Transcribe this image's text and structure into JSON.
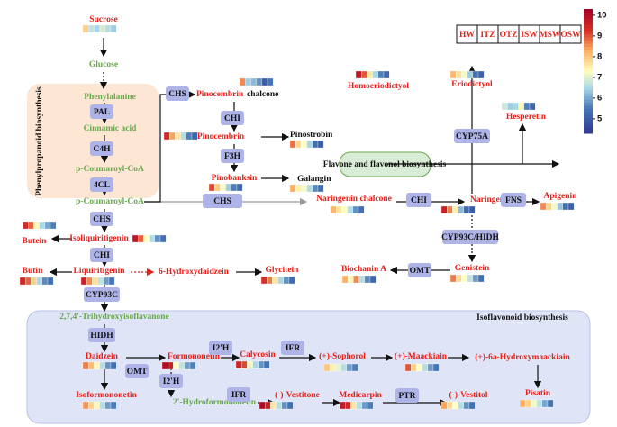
{
  "legend": {
    "samples": [
      "HW",
      "ITZ",
      "OTZ",
      "ISW",
      "MSW",
      "OSW"
    ]
  },
  "colorbar": {
    "lim": [
      4.3,
      10.3
    ],
    "ticks": [
      5,
      6,
      7,
      8,
      9,
      10
    ]
  },
  "regions": [
    "Phenylpropanoid biosynthesis",
    "Flavone and flavonol biosynthesis",
    "Isoflavonoid biosynthesis"
  ],
  "nodes": [
    {
      "label": "Sucrose",
      "color": "#e8201a",
      "heat": [
        7.9,
        6.7,
        6.5,
        6.9,
        6.6,
        6.4
      ]
    },
    {
      "label": "Glucose",
      "color": "#6aa84f"
    },
    {
      "label": "Phenylalanine",
      "color": "#6aa84f"
    },
    {
      "label": "Cinnamic acid",
      "color": "#6aa84f"
    },
    {
      "label": "p-Coumaroyl-CoA",
      "color": "#6aa84f"
    },
    {
      "label": "p-Coumaroyl-CoA",
      "color": "#6aa84f"
    },
    {
      "label": "Pinocembrin",
      "suffix": "chalcone",
      "color": "#e8201a",
      "heat": [
        8.6,
        6.4,
        6.2,
        5.8,
        5.0,
        5.5
      ]
    },
    {
      "label": "Pinocembrin",
      "color": "#e8201a",
      "heat": [
        9.4,
        8.4,
        7.6,
        6.6,
        5.6,
        5.2
      ]
    },
    {
      "label": "Pinostrobin",
      "color": "#111111",
      "heat": [
        8.8,
        7.8,
        7.3,
        6.5,
        5.4,
        5.0
      ]
    },
    {
      "label": "Pinobanksin",
      "color": "#e8201a",
      "heat": [
        9.1,
        8.0,
        7.2,
        6.4,
        5.6,
        5.3
      ]
    },
    {
      "label": "Galangin",
      "color": "#111111",
      "heat": [
        8.3,
        7.5,
        7.2,
        6.6,
        5.7,
        5.4
      ]
    },
    {
      "label": "Naringenin chalcone",
      "color": "#e8201a",
      "heat": [
        8.2,
        7.6,
        7.3,
        6.6,
        5.8,
        5.4
      ]
    },
    {
      "label": "Naringenin",
      "color": "#e8201a",
      "heat": [
        9.6,
        8.7,
        7.5,
        6.2,
        5.3,
        5.0
      ]
    },
    {
      "label": "Apigenin",
      "color": "#e8201a",
      "heat": [
        8.6,
        7.9,
        7.2,
        6.3,
        5.4,
        5.1
      ]
    },
    {
      "label": "Homoeriodictyol",
      "color": "#e8201a",
      "heat": [
        9.8,
        9.0,
        7.6,
        6.5,
        5.6,
        5.2
      ]
    },
    {
      "label": "Eriodictyol",
      "color": "#e8201a",
      "heat": [
        8.2,
        7.7,
        7.2,
        6.4,
        5.4,
        5.1
      ]
    },
    {
      "label": "Hesperetin",
      "color": "#e8201a",
      "heat": [
        6.8,
        6.4,
        6.5,
        7.4,
        5.6,
        5.2
      ]
    },
    {
      "label": "Butein",
      "color": "#e8201a",
      "heat": [
        9.4,
        8.9,
        7.4,
        6.5,
        6.0,
        5.6
      ]
    },
    {
      "label": "Isoliquiritigenin",
      "color": "#e8201a",
      "heat": [
        9.8,
        8.9,
        7.3,
        6.6,
        5.8,
        5.4
      ]
    },
    {
      "label": "Butin",
      "color": "#e8201a",
      "heat": [
        9.5,
        8.9,
        7.9,
        6.5,
        5.7,
        5.4
      ]
    },
    {
      "label": "Liquiritigenin",
      "color": "#e8201a",
      "heat": [
        9.6,
        8.6,
        7.7,
        6.7,
        5.9,
        5.5
      ]
    },
    {
      "label": "6-Hydroxydaidzein",
      "color": "#e8201a"
    },
    {
      "label": "Glycitein",
      "color": "#e8201a",
      "heat": [
        9.3,
        8.7,
        7.6,
        6.5,
        5.8,
        5.3
      ]
    },
    {
      "label": "Biochanin A",
      "color": "#e8201a",
      "heat": [
        8.3,
        7.4,
        8.6,
        6.6,
        5.7,
        5.2
      ]
    },
    {
      "label": "Genistein",
      "color": "#e8201a",
      "heat": [
        8.7,
        7.8,
        7.3,
        6.7,
        5.9,
        5.4
      ]
    },
    {
      "label": "2,7,4'-Trihydroxyisoflavanone",
      "color": "#6aa84f"
    },
    {
      "label": "Daidzein",
      "color": "#e8201a",
      "heat": [
        8.7,
        8.2,
        7.4,
        6.6,
        5.8,
        5.4
      ]
    },
    {
      "label": "Formononetin",
      "color": "#e8201a",
      "heat": [
        10.0,
        9.6,
        7.3,
        6.7,
        5.9,
        5.6
      ]
    },
    {
      "label": "Calycosin",
      "color": "#e8201a",
      "heat": [
        9.5,
        9.1,
        7.2,
        6.5,
        5.8,
        5.5
      ]
    },
    {
      "label": "(+)-Sophorol",
      "color": "#e8201a",
      "heat": [
        8.0,
        7.5,
        7.1,
        6.6,
        5.9,
        5.6
      ]
    },
    {
      "label": "(+)-Maackiain",
      "color": "#e8201a",
      "heat": [
        9.0,
        7.9,
        7.3,
        6.6,
        5.9,
        5.5
      ]
    },
    {
      "label": "(+)-6a-Hydroxymaackiain",
      "color": "#e8201a"
    },
    {
      "label": "Isoformononetin",
      "color": "#e8201a",
      "heat": [
        8.5,
        7.9,
        7.4,
        6.6,
        5.9,
        5.6
      ]
    },
    {
      "label": "2'-Hydroformononetin",
      "color": "#6aa84f"
    },
    {
      "label": "(-)-Vestitone",
      "color": "#e8201a",
      "heat": [
        10.1,
        9.6,
        7.6,
        6.6,
        5.8,
        5.4
      ]
    },
    {
      "label": "Medicarpin",
      "color": "#e8201a",
      "heat": [
        9.7,
        9.5,
        7.6,
        6.6,
        5.9,
        5.6
      ]
    },
    {
      "label": "(-)-Vestitol",
      "color": "#e8201a",
      "heat": [
        8.4,
        7.8,
        7.3,
        6.6,
        5.8,
        5.4
      ]
    },
    {
      "label": "Pisatin",
      "color": "#e8201a",
      "heat": [
        8.3,
        7.9,
        7.2,
        6.7,
        6.0,
        5.5
      ]
    }
  ],
  "enzymes": [
    "PAL",
    "C4H",
    "4CL",
    "CHS",
    "CHI",
    "CYP93C",
    "HIDH",
    "OMT",
    "I2'H",
    "IFR",
    "I2'H",
    "IFR",
    "PTR",
    "CHS",
    "CHI",
    "F3H",
    "CHS",
    "CHI",
    "FNS",
    "CYP75A",
    "CYP93C/HIDH",
    "OMT"
  ]
}
